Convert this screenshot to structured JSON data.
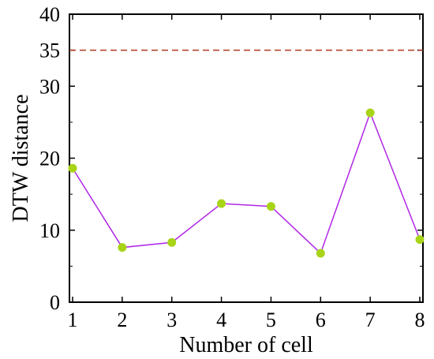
{
  "chart_data": {
    "type": "line",
    "title": "",
    "xlabel": "Number of cell",
    "ylabel": "DTW distance",
    "x": [
      1,
      2,
      3,
      4,
      5,
      6,
      7,
      8
    ],
    "xticks": [
      "1",
      "2",
      "3",
      "4",
      "5",
      "6",
      "7",
      "8"
    ],
    "xlim": [
      1,
      8
    ],
    "ylim": [
      0,
      40
    ],
    "yticks": [
      "0",
      "10",
      "20",
      "30",
      "35",
      "40"
    ],
    "series": [
      {
        "values": [
          18.6,
          7.6,
          8.3,
          13.7,
          13.3,
          6.8,
          26.3,
          8.7
        ]
      }
    ],
    "reference_lines": [
      {
        "y": 35,
        "style": "dashed"
      }
    ],
    "grid": false,
    "colors": {
      "line": "#b026e6",
      "marker": "#a8d418",
      "reference": "#b03a1e",
      "axes": "#000000"
    }
  }
}
